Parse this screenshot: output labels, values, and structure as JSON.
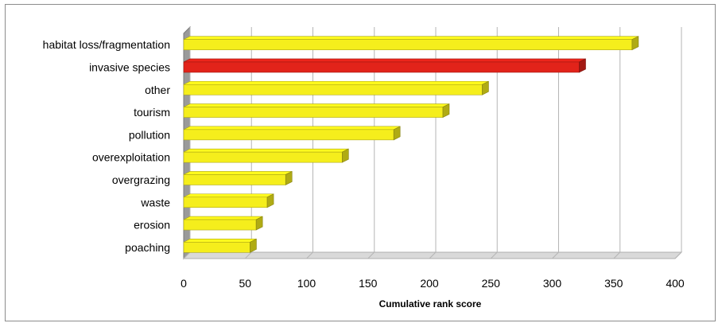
{
  "chart_data": {
    "type": "bar",
    "orientation": "horizontal",
    "style": "3d",
    "categories": [
      "habitat loss/fragmentation",
      "invasive species",
      "other",
      "tourism",
      "pollution",
      "overexploitation",
      "overgrazing",
      "waste",
      "erosion",
      "poaching"
    ],
    "values": [
      365,
      322,
      243,
      211,
      171,
      129,
      83,
      68,
      59,
      54
    ],
    "bar_colors": [
      "#f5ee1c",
      "#e2231a",
      "#f5ee1c",
      "#f5ee1c",
      "#f5ee1c",
      "#f5ee1c",
      "#f5ee1c",
      "#f5ee1c",
      "#f5ee1c",
      "#f5ee1c"
    ],
    "xlabel": "Cumulative rank score",
    "ylabel": "",
    "title": "",
    "xlim": [
      0,
      400
    ],
    "xticks": [
      0,
      50,
      100,
      150,
      200,
      250,
      300,
      350,
      400
    ],
    "grid": "vertical",
    "legend": "none"
  }
}
